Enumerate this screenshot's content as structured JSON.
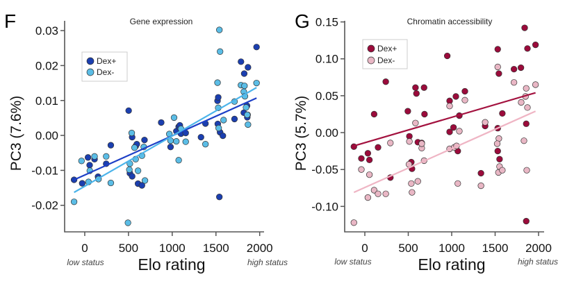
{
  "chart_data": [
    {
      "type": "scatter",
      "panel_label": "F",
      "title": "Gene expression",
      "xlabel": "Elo rating",
      "ylabel": "PC3 (7.6%)",
      "x_annotations": {
        "low": "low status",
        "high": "high status"
      },
      "xlim": [
        -230,
        2050
      ],
      "ylim": [
        -0.0276,
        0.0328
      ],
      "xticks": [
        0,
        500,
        1000,
        1500,
        2000
      ],
      "xtick_labels": [
        "0",
        "500",
        "1000",
        "1500",
        "2000"
      ],
      "yticks": [
        0.03,
        0.02,
        0.01,
        0.0,
        -0.01,
        -0.02
      ],
      "ytick_labels": [
        "0.03",
        "0.02",
        "0.01",
        "0.00",
        "-0.01",
        "-0.02"
      ],
      "legend_position": "top-left",
      "series": [
        {
          "name": "Dex+",
          "color": "#1b3fb0",
          "line_color": "#1d3fc6",
          "fit": [
            [
              -122,
              -0.0127
            ],
            [
              1964,
              0.0107
            ]
          ],
          "points": [
            [
              -122,
              -0.0127
            ],
            [
              -29,
              -0.0137
            ],
            [
              37,
              -0.0063
            ],
            [
              56,
              -0.0085
            ],
            [
              112,
              -0.0068
            ],
            [
              152,
              -0.0118
            ],
            [
              245,
              -0.0081
            ],
            [
              298,
              -0.0028
            ],
            [
              502,
              0.0071
            ],
            [
              516,
              -0.0108
            ],
            [
              542,
              -0.0117
            ],
            [
              542,
              -0.0005
            ],
            [
              582,
              -0.0031
            ],
            [
              595,
              -0.0025
            ],
            [
              609,
              -0.0138
            ],
            [
              654,
              -0.0143
            ],
            [
              683,
              -0.0013
            ],
            [
              874,
              0.0037
            ],
            [
              981,
              -0.0033
            ],
            [
              1047,
              0.0012
            ],
            [
              1074,
              0.0025
            ],
            [
              1087,
              0.0029
            ],
            [
              1100,
              0.0005
            ],
            [
              1154,
              0.0007
            ],
            [
              1329,
              -0.0005
            ],
            [
              1380,
              0.0034
            ],
            [
              1518,
              0.0099
            ],
            [
              1526,
              0.0109
            ],
            [
              1521,
              0.0033
            ],
            [
              1547,
              0.0009
            ],
            [
              1579,
              -0.0001
            ],
            [
              1712,
              0.0047
            ],
            [
              1786,
              0.0211
            ],
            [
              1823,
              0.0177
            ],
            [
              1866,
              0.0195
            ],
            [
              1818,
              0.0065
            ],
            [
              1855,
              0.0085
            ],
            [
              1858,
              0.0052
            ],
            [
              1862,
              0.0059
            ],
            [
              1964,
              0.0253
            ],
            [
              1539,
              -0.0176
            ]
          ]
        },
        {
          "name": "Dex-",
          "color": "#5bbde6",
          "line_color": "#4cb4ea",
          "fit": [
            [
              -122,
              -0.0163
            ],
            [
              1964,
              0.0137
            ]
          ],
          "points": [
            [
              -122,
              -0.019
            ],
            [
              -37,
              -0.0073
            ],
            [
              43,
              -0.0133
            ],
            [
              58,
              -0.0101
            ],
            [
              112,
              -0.006
            ],
            [
              157,
              -0.0125
            ],
            [
              245,
              -0.006
            ],
            [
              298,
              -0.0136
            ],
            [
              494,
              -0.025
            ],
            [
              510,
              -0.0098
            ],
            [
              537,
              0.0007
            ],
            [
              516,
              -0.0081
            ],
            [
              569,
              -0.0035
            ],
            [
              582,
              -0.0068
            ],
            [
              609,
              -0.0101
            ],
            [
              654,
              -0.0058
            ],
            [
              675,
              -0.0033
            ],
            [
              688,
              -0.0129
            ],
            [
              967,
              0.0004
            ],
            [
              981,
              -0.0015
            ],
            [
              1021,
              0.0051
            ],
            [
              1047,
              -0.0017
            ],
            [
              1074,
              -0.0071
            ],
            [
              1100,
              0.0019
            ],
            [
              1154,
              -0.0018
            ],
            [
              1380,
              -0.0025
            ],
            [
              1518,
              0.0151
            ],
            [
              1539,
              0.0302
            ],
            [
              1547,
              0.024
            ],
            [
              1526,
              0.0079
            ],
            [
              1531,
              0.0021
            ],
            [
              1587,
              0.0044
            ],
            [
              1712,
              0.0097
            ],
            [
              1786,
              0.0144
            ],
            [
              1826,
              0.0142
            ],
            [
              1818,
              0.0125
            ],
            [
              1831,
              0.0112
            ],
            [
              1844,
              0.008
            ],
            [
              1858,
              0.0059
            ],
            [
              1866,
              0.0031
            ],
            [
              1964,
              0.015
            ]
          ]
        }
      ]
    },
    {
      "type": "scatter",
      "panel_label": "G",
      "title": "Chromatin accessibility",
      "xlabel": "Elo rating",
      "ylabel": "PC3 (5.7%)",
      "x_annotations": {
        "low": "low status",
        "high": "high status"
      },
      "xlim": [
        -232,
        2064
      ],
      "ylim": [
        -0.1345,
        0.1515
      ],
      "xticks": [
        0,
        500,
        1000,
        1500,
        2000
      ],
      "xtick_labels": [
        "0",
        "500",
        "1000",
        "1500",
        "2000"
      ],
      "yticks": [
        0.15,
        0.1,
        0.05,
        0.0,
        -0.05,
        -0.1
      ],
      "ytick_labels": [
        "0.15",
        "0.10",
        "0.05",
        "0.00",
        "-0.05",
        "-0.10"
      ],
      "legend_position": "top-left",
      "series": [
        {
          "name": "Dex+",
          "color": "#9b0b3b",
          "line_color": "#a3123f",
          "fit": [
            [
              -126,
              -0.018
            ],
            [
              1965,
              0.054
            ]
          ],
          "points": [
            [
              -126,
              -0.019
            ],
            [
              -40,
              -0.035
            ],
            [
              35,
              -0.028
            ],
            [
              53,
              -0.037
            ],
            [
              107,
              0.025
            ],
            [
              152,
              -0.02
            ],
            [
              241,
              0.069
            ],
            [
              294,
              -0.061
            ],
            [
              495,
              0.029
            ],
            [
              513,
              -0.005
            ],
            [
              535,
              -0.04
            ],
            [
              543,
              -0.049
            ],
            [
              583,
              0.061
            ],
            [
              594,
              0.053
            ],
            [
              610,
              -0.013
            ],
            [
              655,
              -0.014
            ],
            [
              682,
              0.061
            ],
            [
              687,
              0.025
            ],
            [
              949,
              0.104
            ],
            [
              976,
              0.043
            ],
            [
              976,
              0.001
            ],
            [
              1021,
              0.007
            ],
            [
              1048,
              0.049
            ],
            [
              1070,
              -0.025
            ],
            [
              1088,
              0.023
            ],
            [
              1152,
              0.056
            ],
            [
              1337,
              -0.055
            ],
            [
              1385,
              0.009
            ],
            [
              1530,
              0.113
            ],
            [
              1543,
              0.08
            ],
            [
              1530,
              0.006
            ],
            [
              1530,
              -0.025
            ],
            [
              1551,
              -0.036
            ],
            [
              1583,
              0.026
            ],
            [
              1717,
              0.086
            ],
            [
              1797,
              0.088
            ],
            [
              1840,
              0.142
            ],
            [
              1872,
              0.114
            ],
            [
              1858,
              0.012
            ],
            [
              1858,
              -0.12
            ],
            [
              1965,
              0.119
            ]
          ]
        },
        {
          "name": "Dex-",
          "color": "#e9b7c5",
          "line_color": "#efb5c4",
          "fit": [
            [
              -126,
              -0.081
            ],
            [
              1965,
              0.029
            ]
          ],
          "points": [
            [
              -126,
              -0.122
            ],
            [
              -40,
              -0.05
            ],
            [
              35,
              -0.088
            ],
            [
              53,
              -0.057
            ],
            [
              107,
              -0.078
            ],
            [
              152,
              -0.083
            ],
            [
              241,
              -0.083
            ],
            [
              294,
              -0.014
            ],
            [
              508,
              -0.043
            ],
            [
              513,
              -0.012
            ],
            [
              535,
              -0.069
            ],
            [
              543,
              -0.081
            ],
            [
              583,
              0.013
            ],
            [
              610,
              -0.066
            ],
            [
              655,
              -0.021
            ],
            [
              655,
              -0.015
            ],
            [
              682,
              -0.038
            ],
            [
              976,
              0.036
            ],
            [
              976,
              -0.022
            ],
            [
              1029,
              -0.02
            ],
            [
              1056,
              -0.018
            ],
            [
              1070,
              -0.069
            ],
            [
              1088,
              0.002
            ],
            [
              1152,
              0.044
            ],
            [
              1337,
              -0.072
            ],
            [
              1385,
              0.014
            ],
            [
              1530,
              0.089
            ],
            [
              1543,
              -0.008
            ],
            [
              1524,
              -0.015
            ],
            [
              1538,
              -0.054
            ],
            [
              1551,
              -0.046
            ],
            [
              1583,
              -0.051
            ],
            [
              1717,
              0.068
            ],
            [
              1832,
              -0.011
            ],
            [
              1850,
              0.049
            ],
            [
              1858,
              0.06
            ],
            [
              1864,
              -0.051
            ],
            [
              1872,
              0.034
            ],
            [
              1800,
              0.041
            ],
            [
              1965,
              0.065
            ]
          ]
        }
      ]
    }
  ]
}
